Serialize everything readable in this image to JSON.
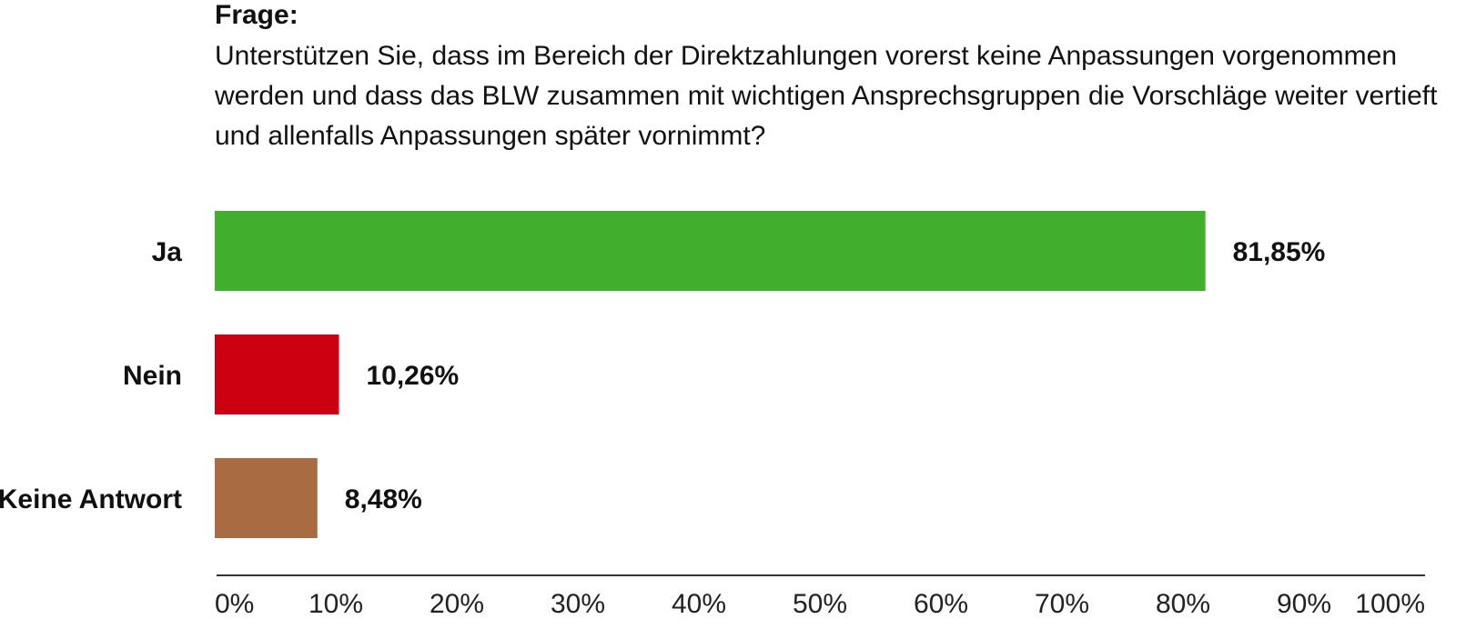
{
  "question": {
    "label": "Frage:",
    "text": "Unterstützen Sie, dass im Bereich der Direktzahlungen vorerst keine Anpassungen vorgenommen werden und dass das BLW zusammen mit wichtigen Ansprechsgruppen die Vorschläge weiter vertieft und allenfalls Anpassungen später vornimmt?"
  },
  "chart_data": {
    "type": "bar",
    "orientation": "horizontal",
    "categories": [
      "Ja",
      "Nein",
      "Keine Antwort"
    ],
    "values": [
      81.85,
      10.26,
      8.48
    ],
    "value_labels": [
      "81,85%",
      "10,26%",
      "8,48%"
    ],
    "colors": [
      "#42ae2e",
      "#cc0010",
      "#a96b42"
    ],
    "xlim": [
      0,
      100
    ],
    "x_ticks": [
      "0%",
      "10%",
      "20%",
      "30%",
      "40%",
      "50%",
      "60%",
      "70%",
      "80%",
      "90%",
      "100%"
    ],
    "grid": false,
    "legend": "none"
  }
}
